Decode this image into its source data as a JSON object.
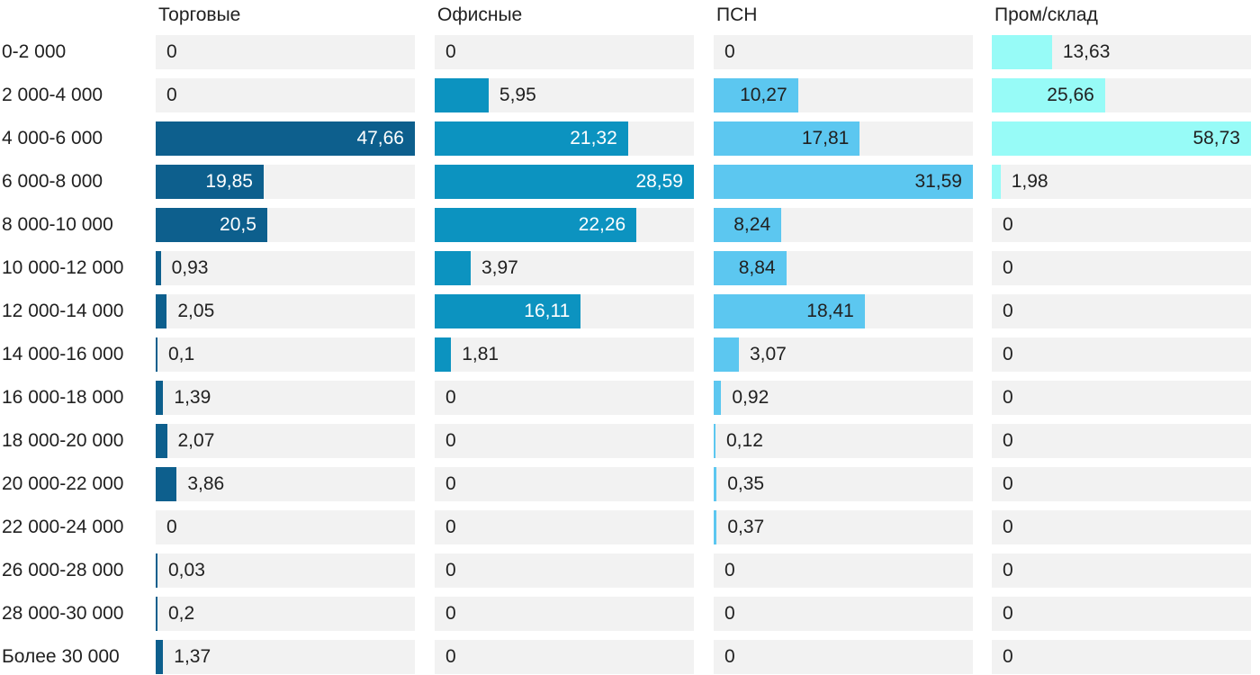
{
  "chart_data": {
    "type": "bar",
    "orientation": "horizontal",
    "title": "",
    "xlabel": "",
    "ylabel": "",
    "grid": false,
    "legend_position": "column-headers",
    "value_format": "comma-decimal",
    "track_color": "#f2f2f2",
    "text_color": "#212121",
    "categories": [
      "0-2 000",
      "2 000-4 000",
      "4 000-6 000",
      "6 000-8 000",
      "8 000-10 000",
      "10 000-12 000",
      "12 000-14 000",
      "14 000-16 000",
      "16 000-18 000",
      "18 000-20 000",
      "20 000-22 000",
      "22 000-24 000",
      "26 000-28 000",
      "28 000-30 000",
      "Более 30 000"
    ],
    "series": [
      {
        "name": "Торговые",
        "color": "#0d5f8d",
        "label_on_bar_color": "#ffffff",
        "axis_max": 47.66,
        "values": [
          0,
          0,
          47.66,
          19.85,
          20.5,
          0.93,
          2.05,
          0.1,
          1.39,
          2.07,
          3.86,
          0,
          0.03,
          0.2,
          1.37
        ]
      },
      {
        "name": "Офисные",
        "color": "#0c93c0",
        "label_on_bar_color": "#ffffff",
        "axis_max": 28.59,
        "values": [
          0,
          5.95,
          21.32,
          28.59,
          22.26,
          3.97,
          16.11,
          1.81,
          0,
          0,
          0,
          0,
          0,
          0,
          0
        ]
      },
      {
        "name": "ПСН",
        "color": "#5cc7f0",
        "label_on_bar_color": "#212121",
        "axis_max": 31.59,
        "values": [
          0,
          10.27,
          17.81,
          31.59,
          8.24,
          8.84,
          18.41,
          3.07,
          0.92,
          0.12,
          0.35,
          0.37,
          0,
          0,
          0
        ]
      },
      {
        "name": "Пром/склад",
        "color": "#97fbf7",
        "label_on_bar_color": "#212121",
        "axis_max": 58.73,
        "values": [
          13.63,
          25.66,
          58.73,
          1.98,
          0,
          0,
          0,
          0,
          0,
          0,
          0,
          0,
          0,
          0,
          0
        ]
      }
    ]
  }
}
